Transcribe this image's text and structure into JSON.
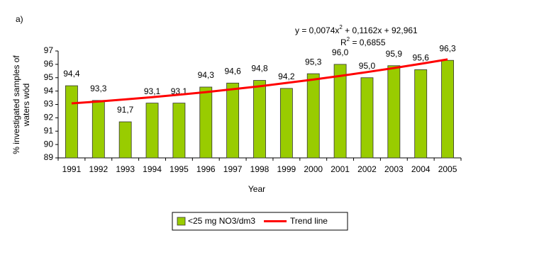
{
  "panel_label": "a)",
  "chart_data": {
    "type": "bar",
    "xlabel": "Year",
    "ylabel": [
      "% investigated samples of",
      "waters wód"
    ],
    "equation": [
      "y = 0,0074x",
      "2",
      " + 0,1162x + 92,961"
    ],
    "r_squared": [
      "R",
      "2",
      " = 0,6855"
    ],
    "categories": [
      "1991",
      "1992",
      "1993",
      "1994",
      "1995",
      "1996",
      "1997",
      "1998",
      "1999",
      "2000",
      "2001",
      "2002",
      "2003",
      "2004",
      "2005"
    ],
    "series": [
      {
        "name": "<25 mg NO3/dm3",
        "color": "#99cc00",
        "type": "bar",
        "values": [
          94.4,
          93.3,
          91.7,
          93.1,
          93.1,
          94.3,
          94.6,
          94.8,
          94.2,
          95.3,
          96.0,
          95.0,
          95.9,
          95.6,
          96.3
        ],
        "value_labels": [
          "94,4",
          "93,3",
          "91,7",
          "93,1",
          "93,1",
          "94,3",
          "94,6",
          "94,8",
          "94,2",
          "95,3",
          "96,0",
          "95,0",
          "95,9",
          "95,6",
          "96,3"
        ]
      },
      {
        "name": "Trend line",
        "color": "#ff0000",
        "type": "line",
        "values": [
          93.08,
          93.22,
          93.38,
          93.54,
          93.73,
          93.92,
          94.14,
          94.36,
          94.61,
          94.86,
          95.13,
          95.42,
          95.72,
          96.04,
          96.37
        ]
      }
    ],
    "ylim": [
      89,
      97
    ],
    "yticks": [
      89,
      90,
      91,
      92,
      93,
      94,
      95,
      96,
      97
    ]
  }
}
